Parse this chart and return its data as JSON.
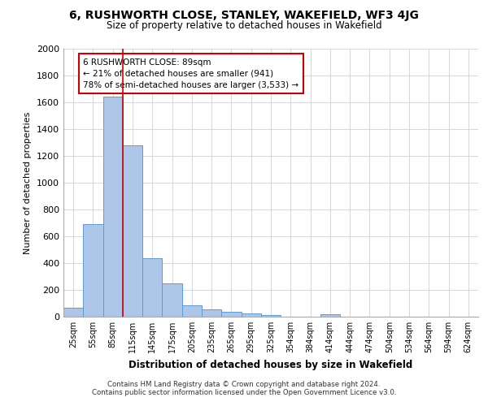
{
  "title": "6, RUSHWORTH CLOSE, STANLEY, WAKEFIELD, WF3 4JG",
  "subtitle": "Size of property relative to detached houses in Wakefield",
  "xlabel": "Distribution of detached houses by size in Wakefield",
  "ylabel": "Number of detached properties",
  "bar_color": "#aec6e8",
  "bar_edge_color": "#5b9bd5",
  "property_line_color": "#cc0000",
  "annotation_box_color": "#cc0000",
  "categories": [
    "25sqm",
    "55sqm",
    "85sqm",
    "115sqm",
    "145sqm",
    "175sqm",
    "205sqm",
    "235sqm",
    "265sqm",
    "295sqm",
    "325sqm",
    "354sqm",
    "384sqm",
    "414sqm",
    "444sqm",
    "474sqm",
    "504sqm",
    "534sqm",
    "564sqm",
    "594sqm",
    "624sqm"
  ],
  "values": [
    65,
    690,
    1640,
    1280,
    435,
    250,
    85,
    55,
    35,
    27,
    15,
    0,
    0,
    16,
    0,
    0,
    0,
    0,
    0,
    0,
    0
  ],
  "ylim": [
    0,
    2000
  ],
  "yticks": [
    0,
    200,
    400,
    600,
    800,
    1000,
    1200,
    1400,
    1600,
    1800,
    2000
  ],
  "property_bin_index": 2,
  "annotation_title": "6 RUSHWORTH CLOSE: 89sqm",
  "annotation_line1": "← 21% of detached houses are smaller (941)",
  "annotation_line2": "78% of semi-detached houses are larger (3,533) →",
  "footnote1": "Contains HM Land Registry data © Crown copyright and database right 2024.",
  "footnote2": "Contains public sector information licensed under the Open Government Licence v3.0.",
  "background_color": "#ffffff",
  "grid_color": "#d0d0d0"
}
